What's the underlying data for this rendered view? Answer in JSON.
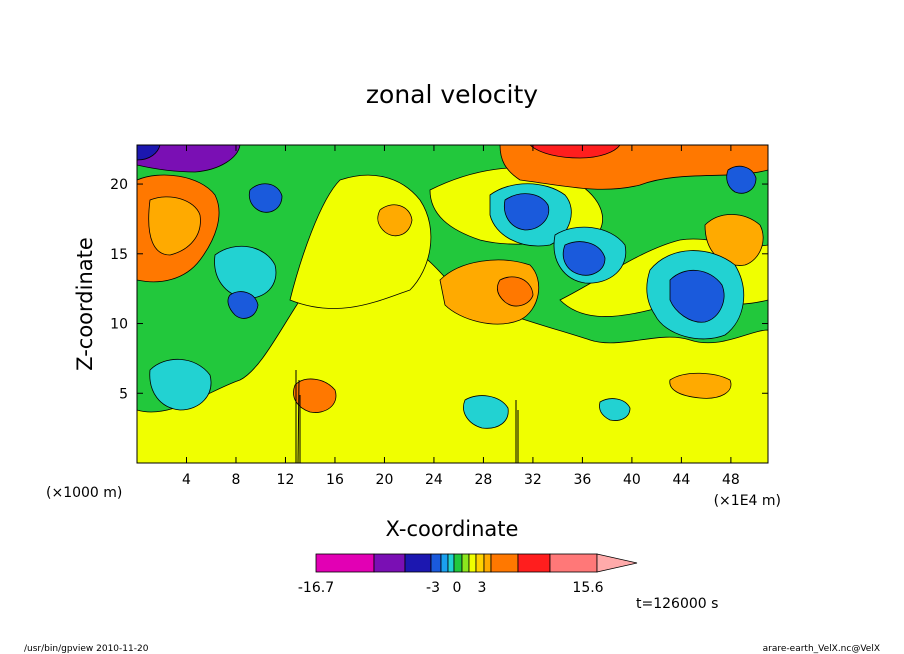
{
  "chart_data": {
    "type": "heatmap",
    "title": "zonal velocity",
    "xlabel": "X-coordinate",
    "ylabel": "Z-coordinate",
    "x_unit_left": "(×1000 m)",
    "x_unit_right": "(×1E4 m)",
    "xlim": [
      0,
      51
    ],
    "ylim": [
      0,
      22.8
    ],
    "xticks": [
      4,
      8,
      12,
      16,
      20,
      24,
      28,
      32,
      36,
      40,
      44,
      48
    ],
    "yticks": [
      5,
      10,
      15,
      20
    ],
    "time_label": "t=126000 s",
    "colorbar": {
      "levels": [
        {
          "color": "#e200b4"
        },
        {
          "color": "#7a0fb4"
        },
        {
          "color": "#1c17b0"
        },
        {
          "color": "#1a5adc"
        },
        {
          "color": "#1aa0f0"
        },
        {
          "color": "#22d2d2"
        },
        {
          "color": "#22c83c"
        },
        {
          "color": "#8ce61e"
        },
        {
          "color": "#f0ff00"
        },
        {
          "color": "#ffd200"
        },
        {
          "color": "#ffaa00"
        },
        {
          "color": "#ff7800"
        },
        {
          "color": "#ff1e1e"
        },
        {
          "color": "#ff7878"
        },
        {
          "color": "#ffaaaa"
        }
      ],
      "labels": [
        {
          "text": "-16.7",
          "value": -16.7
        },
        {
          "text": "-3",
          "value": -3
        },
        {
          "text": "0",
          "value": 0
        },
        {
          "text": "3",
          "value": 3
        },
        {
          "text": "15.6",
          "value": 15.6
        }
      ]
    }
  },
  "colors": {
    "background_field": "#22c83c",
    "low_field": "#f0ff00"
  },
  "footer": {
    "left": "/usr/bin/gpview   2010-11-20",
    "right": "arare-earth_VelX.nc@VelX"
  }
}
